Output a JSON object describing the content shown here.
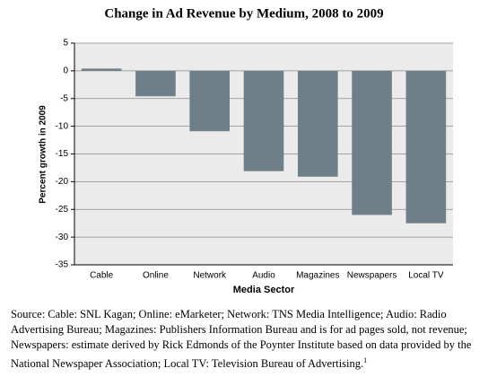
{
  "chart_data": {
    "type": "bar",
    "title": "Change in Ad Revenue by Medium, 2008 to 2009",
    "x_label": "Media Sector",
    "y_label": "Percent growth in 2009",
    "categories": [
      "Cable",
      "Online",
      "Network",
      "Audio",
      "Magazines",
      "Newspapers",
      "Local TV"
    ],
    "values": [
      0.4,
      -4.6,
      -10.9,
      -18.1,
      -19.1,
      -26.0,
      -27.5
    ],
    "color": "#6f7f87",
    "ylim": [
      -35,
      5
    ],
    "yticks": [
      5,
      0,
      -5,
      -10,
      -15,
      -20,
      -25,
      -30,
      -35
    ],
    "grid": true
  },
  "source": "Source: Cable: SNL Kagan; Online: eMarketer; Network: TNS Media Intelligence; Audio: Radio Advertising Bureau; Magazines: Publishers Information Bureau and is for ad pages sold, not revenue; Newspapers: estimate derived by Rick Edmonds of the Poynter Institute based on data provided by the National Newspaper Association; Local TV: Television Bureau of Advertising.",
  "source_footnote_mark": "1"
}
